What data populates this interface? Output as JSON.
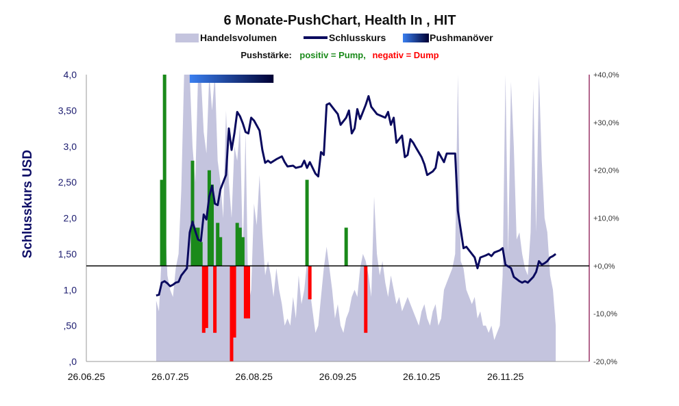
{
  "chart_data": {
    "type": "combo",
    "title": "6 Monate-PushChart, Health In , HIT",
    "legend": {
      "volume": "Handelsvolumen",
      "close": "Schlusskurs",
      "push": "Pushmanöver"
    },
    "push_strength": {
      "label": "Pushstärke:",
      "positive": "positiv = Pump,",
      "negative": "negativ = Dump"
    },
    "ylabel_left": "Schlusskurs USD",
    "y_left_ticks": [
      "4,0",
      "3,50",
      "3,0",
      "2,50",
      "2,0",
      "1,50",
      "1,0",
      ",50",
      ",0"
    ],
    "y_left_range": [
      0,
      4
    ],
    "y_right_ticks": [
      "+40,0%",
      "+30,0%",
      "+20,0%",
      "+10,0%",
      "+0,0%",
      "-10,0%",
      "-20,0%"
    ],
    "y_right_range": [
      -20,
      40
    ],
    "x_tick_labels": [
      "26.06.25",
      "26.07.25",
      "26.08.25",
      "26.09.25",
      "26.10.25",
      "26.11.25"
    ],
    "x_range_days": [
      0,
      180
    ],
    "colors": {
      "volume": "#c4c4de",
      "close": "#0a0a5e",
      "pump": "#1a8a1a",
      "dump": "#ff0000",
      "axis_right": "#800040",
      "zero_line": "#000000",
      "push_gradient_start": "#3a7ff0",
      "push_gradient_end": "#000033"
    },
    "push_band": {
      "start_day": 37,
      "end_day": 67
    },
    "close_series": [
      [
        25,
        0.92
      ],
      [
        26,
        0.93
      ],
      [
        27,
        1.1
      ],
      [
        28,
        1.12
      ],
      [
        29,
        1.09
      ],
      [
        30,
        1.05
      ],
      [
        31,
        1.07
      ],
      [
        32,
        1.1
      ],
      [
        33,
        1.11
      ],
      [
        34,
        1.2
      ],
      [
        35,
        1.25
      ],
      [
        36,
        1.3
      ],
      [
        37,
        1.8
      ],
      [
        38,
        1.95
      ],
      [
        39,
        1.82
      ],
      [
        40,
        1.7
      ],
      [
        41,
        1.68
      ],
      [
        42,
        2.05
      ],
      [
        43,
        1.98
      ],
      [
        44,
        2.3
      ],
      [
        45,
        2.45
      ],
      [
        46,
        2.2
      ],
      [
        47,
        2.18
      ],
      [
        48,
        2.4
      ],
      [
        49,
        2.5
      ],
      [
        50,
        2.6
      ],
      [
        51,
        3.25
      ],
      [
        52,
        2.95
      ],
      [
        53,
        3.18
      ],
      [
        54,
        3.48
      ],
      [
        55,
        3.42
      ],
      [
        56,
        3.32
      ],
      [
        57,
        3.2
      ],
      [
        58,
        3.18
      ],
      [
        59,
        3.4
      ],
      [
        60,
        3.36
      ],
      [
        62,
        3.22
      ],
      [
        63,
        2.95
      ],
      [
        64,
        2.77
      ],
      [
        65,
        2.8
      ],
      [
        66,
        2.77
      ],
      [
        68,
        2.82
      ],
      [
        70,
        2.86
      ],
      [
        71,
        2.78
      ],
      [
        72,
        2.72
      ],
      [
        74,
        2.73
      ],
      [
        75,
        2.7
      ],
      [
        77,
        2.72
      ],
      [
        78,
        2.8
      ],
      [
        79,
        2.7
      ],
      [
        80,
        2.78
      ],
      [
        82,
        2.62
      ],
      [
        83,
        2.58
      ],
      [
        84,
        2.92
      ],
      [
        85,
        2.88
      ],
      [
        86,
        3.58
      ],
      [
        87,
        3.6
      ],
      [
        89,
        3.5
      ],
      [
        90,
        3.45
      ],
      [
        91,
        3.3
      ],
      [
        93,
        3.4
      ],
      [
        94,
        3.5
      ],
      [
        95,
        3.18
      ],
      [
        96,
        3.25
      ],
      [
        97,
        3.52
      ],
      [
        98,
        3.38
      ],
      [
        100,
        3.58
      ],
      [
        101,
        3.7
      ],
      [
        102,
        3.55
      ],
      [
        104,
        3.45
      ],
      [
        107,
        3.4
      ],
      [
        108,
        3.48
      ],
      [
        109,
        3.3
      ],
      [
        110,
        3.4
      ],
      [
        111,
        3.05
      ],
      [
        113,
        3.15
      ],
      [
        114,
        2.85
      ],
      [
        115,
        2.88
      ],
      [
        116,
        3.1
      ],
      [
        117,
        3.05
      ],
      [
        118,
        2.98
      ],
      [
        120,
        2.85
      ],
      [
        121,
        2.75
      ],
      [
        122,
        2.6
      ],
      [
        124,
        2.65
      ],
      [
        125,
        2.7
      ],
      [
        126,
        2.92
      ],
      [
        127,
        2.85
      ],
      [
        128,
        2.78
      ],
      [
        129,
        2.9
      ],
      [
        132,
        2.9
      ],
      [
        133,
        2.1
      ],
      [
        135,
        1.58
      ],
      [
        136,
        1.6
      ],
      [
        139,
        1.45
      ],
      [
        140,
        1.3
      ],
      [
        141,
        1.45
      ],
      [
        143,
        1.48
      ],
      [
        144,
        1.5
      ],
      [
        145,
        1.47
      ],
      [
        146,
        1.52
      ],
      [
        148,
        1.55
      ],
      [
        149,
        1.58
      ],
      [
        150,
        1.35
      ],
      [
        152,
        1.3
      ],
      [
        153,
        1.18
      ],
      [
        155,
        1.12
      ],
      [
        156,
        1.1
      ],
      [
        157,
        1.12
      ],
      [
        158,
        1.1
      ],
      [
        160,
        1.18
      ],
      [
        161,
        1.25
      ],
      [
        162,
        1.4
      ],
      [
        163,
        1.35
      ],
      [
        164,
        1.37
      ],
      [
        165,
        1.4
      ],
      [
        166,
        1.45
      ],
      [
        167,
        1.47
      ],
      [
        168,
        1.5
      ]
    ],
    "volume_series": [
      [
        25,
        0.85
      ],
      [
        26,
        0.7
      ],
      [
        27,
        1.5
      ],
      [
        28,
        2.2
      ],
      [
        29,
        1.2
      ],
      [
        30,
        1.0
      ],
      [
        31,
        0.9
      ],
      [
        32,
        1.3
      ],
      [
        33,
        1.5
      ],
      [
        34,
        2.4
      ],
      [
        35,
        4.0
      ],
      [
        36,
        4.0
      ],
      [
        37,
        4.0
      ],
      [
        38,
        3.0
      ],
      [
        39,
        2.5
      ],
      [
        40,
        4.0
      ],
      [
        41,
        4.0
      ],
      [
        42,
        3.2
      ],
      [
        43,
        2.9
      ],
      [
        44,
        4.0
      ],
      [
        45,
        3.5
      ],
      [
        46,
        4.0
      ],
      [
        47,
        2.8
      ],
      [
        48,
        2.5
      ],
      [
        49,
        2.0
      ],
      [
        50,
        3.5
      ],
      [
        51,
        2.5
      ],
      [
        52,
        2.0
      ],
      [
        53,
        3.0
      ],
      [
        54,
        2.8
      ],
      [
        55,
        3.3
      ],
      [
        56,
        1.5
      ],
      [
        57,
        3.2
      ],
      [
        58,
        0.8
      ],
      [
        59,
        1.0
      ],
      [
        60,
        2.2
      ],
      [
        61,
        1.9
      ],
      [
        62,
        2.6
      ],
      [
        63,
        1.8
      ],
      [
        64,
        1.2
      ],
      [
        65,
        1.4
      ],
      [
        66,
        1.2
      ],
      [
        67,
        0.9
      ],
      [
        68,
        1.3
      ],
      [
        69,
        1.0
      ],
      [
        70,
        0.8
      ],
      [
        71,
        0.5
      ],
      [
        72,
        0.6
      ],
      [
        73,
        0.5
      ],
      [
        74,
        0.9
      ],
      [
        75,
        0.6
      ],
      [
        76,
        1.2
      ],
      [
        77,
        0.8
      ],
      [
        78,
        1.0
      ],
      [
        79,
        1.4
      ],
      [
        80,
        1.0
      ],
      [
        81,
        0.7
      ],
      [
        82,
        0.4
      ],
      [
        83,
        0.5
      ],
      [
        84,
        0.9
      ],
      [
        85,
        1.3
      ],
      [
        86,
        1.6
      ],
      [
        87,
        1.3
      ],
      [
        88,
        1.0
      ],
      [
        89,
        0.6
      ],
      [
        90,
        0.8
      ],
      [
        91,
        0.5
      ],
      [
        92,
        0.4
      ],
      [
        93,
        0.6
      ],
      [
        94,
        0.7
      ],
      [
        95,
        0.9
      ],
      [
        96,
        1.0
      ],
      [
        97,
        0.9
      ],
      [
        98,
        1.3
      ],
      [
        99,
        1.5
      ],
      [
        100,
        1.4
      ],
      [
        101,
        1.2
      ],
      [
        102,
        0.9
      ],
      [
        103,
        2.3
      ],
      [
        104,
        1.5
      ],
      [
        105,
        1.2
      ],
      [
        106,
        1.4
      ],
      [
        107,
        1.1
      ],
      [
        108,
        0.9
      ],
      [
        109,
        1.2
      ],
      [
        110,
        1.0
      ],
      [
        111,
        0.8
      ],
      [
        112,
        0.9
      ],
      [
        113,
        0.7
      ],
      [
        114,
        0.8
      ],
      [
        115,
        0.9
      ],
      [
        116,
        0.8
      ],
      [
        117,
        0.7
      ],
      [
        118,
        0.6
      ],
      [
        119,
        0.5
      ],
      [
        120,
        0.7
      ],
      [
        121,
        0.8
      ],
      [
        122,
        0.6
      ],
      [
        123,
        0.5
      ],
      [
        124,
        0.7
      ],
      [
        125,
        0.8
      ],
      [
        126,
        0.5
      ],
      [
        127,
        0.6
      ],
      [
        128,
        1.0
      ],
      [
        129,
        1.1
      ],
      [
        130,
        1.2
      ],
      [
        131,
        1.3
      ],
      [
        132,
        1.5
      ],
      [
        133,
        4.0
      ],
      [
        134,
        1.4
      ],
      [
        135,
        1.3
      ],
      [
        136,
        1.0
      ],
      [
        137,
        0.9
      ],
      [
        138,
        0.8
      ],
      [
        139,
        0.9
      ],
      [
        140,
        0.6
      ],
      [
        141,
        0.7
      ],
      [
        142,
        0.5
      ],
      [
        143,
        0.5
      ],
      [
        144,
        0.4
      ],
      [
        145,
        0.5
      ],
      [
        146,
        0.3
      ],
      [
        147,
        0.4
      ],
      [
        148,
        0.5
      ],
      [
        149,
        1.2
      ],
      [
        150,
        4.0
      ],
      [
        151,
        1.5
      ],
      [
        152,
        3.9
      ],
      [
        153,
        3.0
      ],
      [
        154,
        1.7
      ],
      [
        155,
        1.8
      ],
      [
        156,
        1.5
      ],
      [
        157,
        1.3
      ],
      [
        158,
        1.2
      ],
      [
        159,
        1.8
      ],
      [
        160,
        3.8
      ],
      [
        161,
        1.8
      ],
      [
        162,
        4.0
      ],
      [
        163,
        2.8
      ],
      [
        164,
        2.0
      ],
      [
        165,
        1.8
      ],
      [
        166,
        1.2
      ],
      [
        167,
        1.0
      ],
      [
        168,
        0.5
      ]
    ],
    "push_bars": [
      [
        27,
        18
      ],
      [
        28,
        40
      ],
      [
        38,
        22
      ],
      [
        39,
        8
      ],
      [
        40,
        8
      ],
      [
        41,
        5
      ],
      [
        42,
        -14
      ],
      [
        43,
        -13
      ],
      [
        44,
        20
      ],
      [
        45,
        17
      ],
      [
        46,
        -14
      ],
      [
        47,
        9
      ],
      [
        48,
        6
      ],
      [
        52,
        -20
      ],
      [
        53,
        -15
      ],
      [
        54,
        9
      ],
      [
        55,
        8
      ],
      [
        56,
        6
      ],
      [
        57,
        -11
      ],
      [
        58,
        -11
      ],
      [
        79,
        18
      ],
      [
        80,
        -7
      ],
      [
        93,
        8
      ],
      [
        100,
        -14
      ]
    ]
  }
}
